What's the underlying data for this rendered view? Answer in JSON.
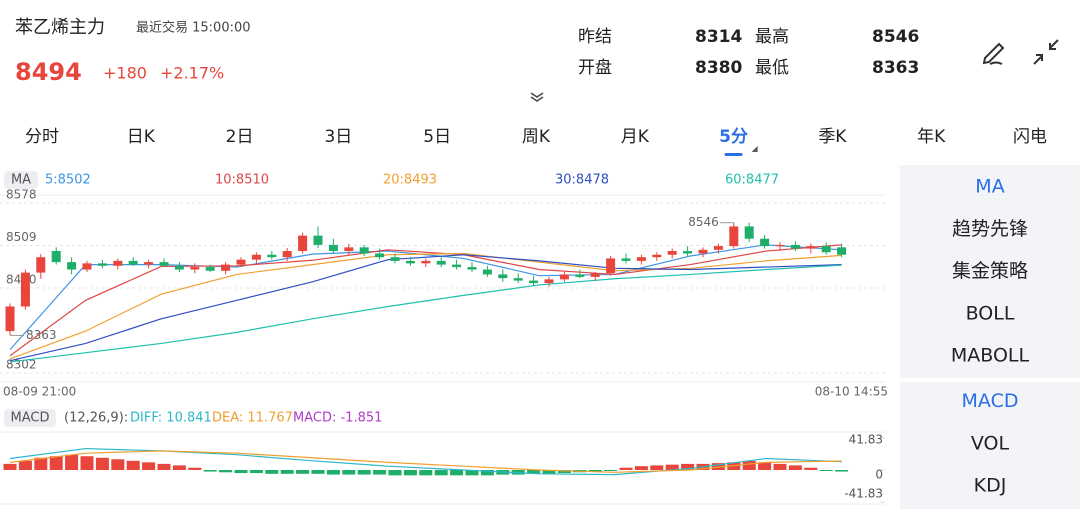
{
  "header": {
    "title": "苯乙烯主力",
    "last_trade": "最近交易 15:00:00",
    "price": "8494",
    "change": "+180",
    "change_pct": "+2.17%"
  },
  "stats": [
    {
      "label": "昨结",
      "value": "8314"
    },
    {
      "label": "最高",
      "value": "8546"
    },
    {
      "label": "开盘",
      "value": "8380"
    },
    {
      "label": "最低",
      "value": "8363"
    }
  ],
  "tabs": [
    {
      "label": "分时"
    },
    {
      "label": "日K"
    },
    {
      "label": "2日"
    },
    {
      "label": "3日"
    },
    {
      "label": "5日"
    },
    {
      "label": "周K"
    },
    {
      "label": "月K"
    },
    {
      "label": "5分",
      "active": true
    },
    {
      "label": "季K"
    },
    {
      "label": "年K"
    },
    {
      "label": "闪电"
    }
  ],
  "chart_data": [
    {
      "type": "candlestick",
      "indicator": "MA",
      "up_color": "#e8453c",
      "down_color": "#1fae6a",
      "ylim": [
        8302,
        8578
      ],
      "yticks": [
        8578,
        8509,
        8440,
        8302
      ],
      "x_labels": [
        "08-09 21:00",
        "08-10 14:55"
      ],
      "max_label": 8546,
      "min_label": 8363,
      "open": [
        8370,
        8410,
        8465,
        8500,
        8482,
        8470,
        8480,
        8476,
        8484,
        8478,
        8482,
        8476,
        8470,
        8474,
        8468,
        8478,
        8486,
        8494,
        8490,
        8500,
        8525,
        8510,
        8500,
        8506,
        8496,
        8490,
        8484,
        8480,
        8484,
        8478,
        8474,
        8470,
        8462,
        8456,
        8452,
        8448,
        8454,
        8462,
        8458,
        8464,
        8488,
        8484,
        8490,
        8494,
        8500,
        8496,
        8502,
        8508,
        8540,
        8520,
        8508,
        8510,
        8504,
        8508,
        8506
      ],
      "high": [
        8415,
        8470,
        8495,
        8506,
        8490,
        8484,
        8486,
        8488,
        8490,
        8486,
        8488,
        8482,
        8480,
        8478,
        8482,
        8490,
        8498,
        8500,
        8505,
        8530,
        8540,
        8520,
        8512,
        8510,
        8504,
        8496,
        8490,
        8488,
        8490,
        8486,
        8482,
        8476,
        8470,
        8464,
        8460,
        8458,
        8466,
        8470,
        8466,
        8492,
        8496,
        8494,
        8498,
        8504,
        8508,
        8506,
        8512,
        8546,
        8546,
        8526,
        8514,
        8516,
        8512,
        8514,
        8512
      ],
      "low": [
        8363,
        8405,
        8455,
        8478,
        8462,
        8466,
        8472,
        8470,
        8476,
        8472,
        8474,
        8466,
        8464,
        8466,
        8462,
        8474,
        8480,
        8486,
        8484,
        8496,
        8505,
        8496,
        8494,
        8492,
        8486,
        8480,
        8476,
        8474,
        8474,
        8470,
        8466,
        8458,
        8450,
        8448,
        8444,
        8442,
        8450,
        8456,
        8452,
        8460,
        8480,
        8478,
        8484,
        8488,
        8492,
        8490,
        8496,
        8504,
        8515,
        8504,
        8500,
        8500,
        8496,
        8494,
        8490
      ],
      "close": [
        8410,
        8465,
        8490,
        8482,
        8470,
        8480,
        8476,
        8484,
        8478,
        8482,
        8476,
        8470,
        8474,
        8468,
        8478,
        8486,
        8494,
        8490,
        8500,
        8525,
        8510,
        8500,
        8506,
        8496,
        8490,
        8484,
        8480,
        8484,
        8478,
        8474,
        8470,
        8462,
        8456,
        8452,
        8448,
        8454,
        8462,
        8458,
        8464,
        8488,
        8484,
        8490,
        8494,
        8500,
        8496,
        8502,
        8508,
        8540,
        8520,
        8508,
        8510,
        8504,
        8508,
        8498,
        8494
      ],
      "series": [
        {
          "name": "5:8502",
          "color": "#3d95e6",
          "values": [
            8340,
            8478,
            8478,
            8474,
            8495,
            8500,
            8488,
            8460,
            8462,
            8492,
            8510,
            8502
          ]
        },
        {
          "name": "10:8510",
          "color": "#e04646",
          "values": [
            8330,
            8420,
            8475,
            8476,
            8485,
            8502,
            8494,
            8470,
            8462,
            8478,
            8500,
            8510
          ]
        },
        {
          "name": "20:8493",
          "color": "#f0a030",
          "values": [
            8325,
            8370,
            8430,
            8462,
            8478,
            8494,
            8496,
            8482,
            8468,
            8472,
            8484,
            8493
          ]
        },
        {
          "name": "30:8478",
          "color": "#2f4fc4",
          "values": [
            8322,
            8350,
            8390,
            8420,
            8450,
            8486,
            8494,
            8484,
            8472,
            8470,
            8474,
            8478
          ]
        },
        {
          "name": "60:8477",
          "color": "#20c0b0",
          "values": [
            8320,
            8335,
            8350,
            8368,
            8390,
            8410,
            8428,
            8445,
            8455,
            8462,
            8470,
            8477
          ]
        }
      ]
    },
    {
      "type": "macd",
      "indicator": "MACD",
      "params": "(12,26,9):",
      "label": "MACD: -1.851",
      "label_color": "#b03cc8",
      "up_color": "#e8453c",
      "down_color": "#1fae6a",
      "ylim": [
        -41.83,
        41.83
      ],
      "yticks": [
        41.83,
        0,
        -41.83
      ],
      "values": [
        8,
        12,
        16,
        18,
        20,
        18,
        16,
        14,
        12,
        10,
        8,
        6,
        3,
        -2,
        -3,
        -4,
        -4,
        -5,
        -5,
        -5,
        -5,
        -6,
        -6,
        -6,
        -6,
        -7,
        -7,
        -7,
        -7,
        -7,
        -7,
        -7,
        -6,
        -6,
        -5,
        -5,
        -4,
        -3,
        -2,
        -1,
        3,
        5,
        6,
        7,
        8,
        8,
        9,
        10,
        12,
        10,
        8,
        6,
        3,
        -1,
        -2
      ],
      "series": [
        {
          "name": "DIFF: 10.841",
          "color": "#2bb8c8",
          "values": [
            15,
            28,
            25,
            20,
            12,
            5,
            0,
            -5,
            -6,
            2,
            15,
            10.841
          ]
        },
        {
          "name": "DEA: 11.767",
          "color": "#f0a030",
          "values": [
            10,
            22,
            25,
            22,
            16,
            10,
            5,
            0,
            -3,
            0,
            10,
            11.767
          ]
        }
      ]
    }
  ],
  "sidebar": [
    [
      "MA",
      "趋势先锋",
      "集金策略",
      "BOLL",
      "MABOLL"
    ],
    [
      "MACD",
      "VOL",
      "KDJ"
    ]
  ]
}
